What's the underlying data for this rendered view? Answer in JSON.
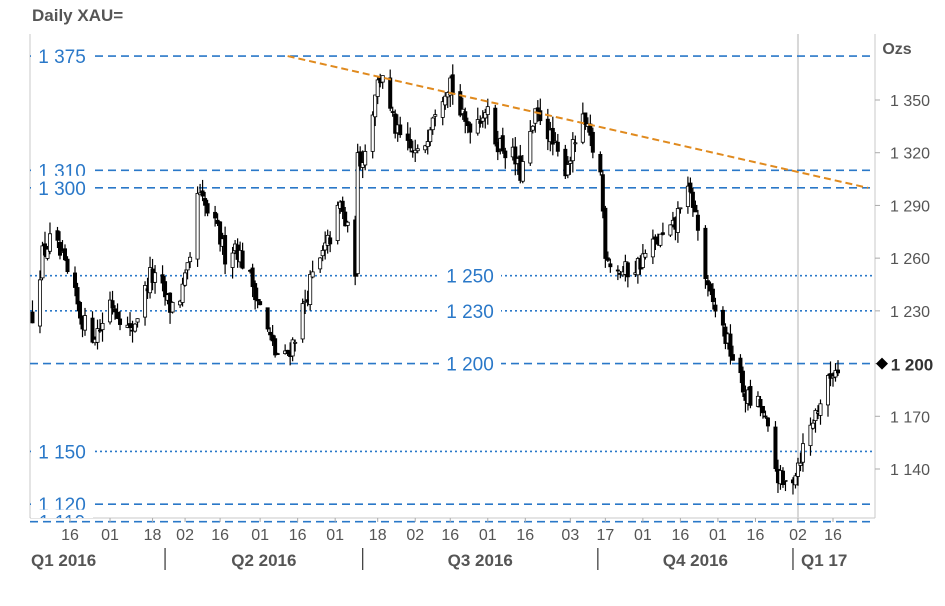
{
  "chart_data": {
    "type": "candlestick",
    "title": "Daily XAU=",
    "unit_label": "Ozs",
    "ylim": [
      1110,
      1382
    ],
    "y_ticks": [
      "1 350",
      "1 320",
      "1 290",
      "1 260",
      "1 230",
      "1 200",
      "1 170",
      "1 140"
    ],
    "last_price": "1 200",
    "x_ticks": [
      {
        "label": "16",
        "date": "2016-01-16"
      },
      {
        "label": "01",
        "date": "2016-02-01"
      },
      {
        "label": "18",
        "date": "2016-02-18"
      },
      {
        "label": "02",
        "date": "2016-03-02"
      },
      {
        "label": "16",
        "date": "2016-03-16"
      },
      {
        "label": "01",
        "date": "2016-04-01"
      },
      {
        "label": "16",
        "date": "2016-04-16"
      },
      {
        "label": "01",
        "date": "2016-05-01"
      },
      {
        "label": "18",
        "date": "2016-05-18"
      },
      {
        "label": "02",
        "date": "2016-06-02"
      },
      {
        "label": "16",
        "date": "2016-06-16"
      },
      {
        "label": "01",
        "date": "2016-07-01"
      },
      {
        "label": "16",
        "date": "2016-07-16"
      },
      {
        "label": "03",
        "date": "2016-08-03"
      },
      {
        "label": "17",
        "date": "2016-08-17"
      },
      {
        "label": "01",
        "date": "2016-09-01"
      },
      {
        "label": "16",
        "date": "2016-09-16"
      },
      {
        "label": "01",
        "date": "2016-10-01"
      },
      {
        "label": "16",
        "date": "2016-10-16"
      },
      {
        "label": "02",
        "date": "2016-11-02"
      },
      {
        "label": "16",
        "date": "2016-11-16"
      }
    ],
    "quarters": [
      {
        "label": "Q1 2016",
        "start": "2016-01-01"
      },
      {
        "label": "Q2 2016",
        "start": "2016-02-23"
      },
      {
        "label": "Q3 2016",
        "start": "2016-05-12"
      },
      {
        "label": "Q4 2016",
        "start": "2016-08-14"
      },
      {
        "label": "Q1 17",
        "start": "2016-10-31"
      }
    ],
    "levels": [
      {
        "label": "1 375",
        "value": 1375,
        "style": "dashed",
        "label_pos": "left"
      },
      {
        "label": "1 310",
        "value": 1310,
        "style": "dashed",
        "label_pos": "left"
      },
      {
        "label": "1 300",
        "value": 1300,
        "style": "dashed",
        "label_pos": "left"
      },
      {
        "label": "1 250",
        "value": 1250,
        "style": "dotted",
        "label_pos": "center"
      },
      {
        "label": "1 230",
        "value": 1230,
        "style": "dotted",
        "label_pos": "center"
      },
      {
        "label": "1 200",
        "value": 1200,
        "style": "dashed",
        "label_pos": "center"
      },
      {
        "label": "1 150",
        "value": 1150,
        "style": "dotted",
        "label_pos": "left"
      },
      {
        "label": "1 120",
        "value": 1120,
        "style": "dashed",
        "label_pos": "left"
      },
      {
        "label": "1 110",
        "value": 1110,
        "style": "dashed",
        "label_pos": "left"
      }
    ],
    "trendline": {
      "color": "#e08a1e",
      "from": {
        "date": "2016-04-12",
        "value": 1375
      },
      "to": {
        "date": "2016-11-30",
        "value": 1300
      }
    },
    "current_date": "2016-11-02",
    "price_path": [
      [
        "2016-01-01",
        1228
      ],
      [
        "2016-01-05",
        1262
      ],
      [
        "2016-01-09",
        1272
      ],
      [
        "2016-01-13",
        1258
      ],
      [
        "2016-01-17",
        1242
      ],
      [
        "2016-01-20",
        1228
      ],
      [
        "2016-01-24",
        1216
      ],
      [
        "2016-01-28",
        1220
      ],
      [
        "2016-02-01",
        1236
      ],
      [
        "2016-02-05",
        1228
      ],
      [
        "2016-02-09",
        1217
      ],
      [
        "2016-02-13",
        1232
      ],
      [
        "2016-02-17",
        1250
      ],
      [
        "2016-02-21",
        1244
      ],
      [
        "2016-02-25",
        1232
      ],
      [
        "2016-02-29",
        1238
      ],
      [
        "2016-03-04",
        1256
      ],
      [
        "2016-03-07",
        1296
      ],
      [
        "2016-03-11",
        1286
      ],
      [
        "2016-03-15",
        1275
      ],
      [
        "2016-03-18",
        1262
      ],
      [
        "2016-03-22",
        1268
      ],
      [
        "2016-03-26",
        1255
      ],
      [
        "2016-03-30",
        1242
      ],
      [
        "2016-04-03",
        1222
      ],
      [
        "2016-04-07",
        1206
      ],
      [
        "2016-04-11",
        1203
      ],
      [
        "2016-04-14",
        1212
      ],
      [
        "2016-04-17",
        1226
      ],
      [
        "2016-04-21",
        1246
      ],
      [
        "2016-04-25",
        1258
      ],
      [
        "2016-04-29",
        1272
      ],
      [
        "2016-05-03",
        1290
      ],
      [
        "2016-05-06",
        1275
      ],
      [
        "2016-05-09",
        1255
      ],
      [
        "2016-05-10",
        1315
      ],
      [
        "2016-05-14",
        1323
      ],
      [
        "2016-05-17",
        1356
      ],
      [
        "2016-05-20",
        1366
      ],
      [
        "2016-05-23",
        1342
      ],
      [
        "2016-05-26",
        1330
      ],
      [
        "2016-05-30",
        1322
      ],
      [
        "2016-06-03",
        1318
      ],
      [
        "2016-06-06",
        1326
      ],
      [
        "2016-06-09",
        1344
      ],
      [
        "2016-06-13",
        1355
      ],
      [
        "2016-06-16",
        1362
      ],
      [
        "2016-06-19",
        1345
      ],
      [
        "2016-06-22",
        1336
      ],
      [
        "2016-06-26",
        1338
      ],
      [
        "2016-06-30",
        1345
      ],
      [
        "2016-07-04",
        1328
      ],
      [
        "2016-07-08",
        1322
      ],
      [
        "2016-07-11",
        1318
      ],
      [
        "2016-07-14",
        1308
      ],
      [
        "2016-07-17",
        1322
      ],
      [
        "2016-07-20",
        1340
      ],
      [
        "2016-07-23",
        1342
      ],
      [
        "2016-07-26",
        1328
      ],
      [
        "2016-07-29",
        1318
      ],
      [
        "2016-08-01",
        1312
      ],
      [
        "2016-08-04",
        1322
      ],
      [
        "2016-08-07",
        1338
      ],
      [
        "2016-08-09",
        1335
      ],
      [
        "2016-08-12",
        1322
      ],
      [
        "2016-08-15",
        1308
      ],
      [
        "2016-08-17",
        1265
      ],
      [
        "2016-08-20",
        1255
      ],
      [
        "2016-08-24",
        1252
      ],
      [
        "2016-08-28",
        1254
      ],
      [
        "2016-08-31",
        1258
      ],
      [
        "2016-09-03",
        1264
      ],
      [
        "2016-09-07",
        1270
      ],
      [
        "2016-09-10",
        1272
      ],
      [
        "2016-09-14",
        1278
      ],
      [
        "2016-09-17",
        1300
      ],
      [
        "2016-09-21",
        1292
      ],
      [
        "2016-09-24",
        1268
      ],
      [
        "2016-09-27",
        1240
      ],
      [
        "2016-10-01",
        1228
      ],
      [
        "2016-10-04",
        1215
      ],
      [
        "2016-10-08",
        1200
      ],
      [
        "2016-10-11",
        1185
      ],
      [
        "2016-10-14",
        1178
      ],
      [
        "2016-10-18",
        1176
      ],
      [
        "2016-10-21",
        1160
      ],
      [
        "2016-10-24",
        1140
      ],
      [
        "2016-10-27",
        1130
      ],
      [
        "2016-10-31",
        1136
      ],
      [
        "2016-11-03",
        1148
      ],
      [
        "2016-11-06",
        1160
      ],
      [
        "2016-11-09",
        1172
      ],
      [
        "2016-11-13",
        1185
      ],
      [
        "2016-11-16",
        1196
      ],
      [
        "2016-11-19",
        1200
      ]
    ],
    "grid": false,
    "legend": "none"
  }
}
